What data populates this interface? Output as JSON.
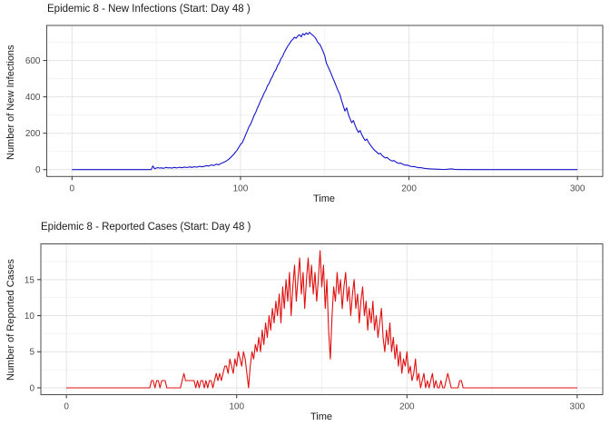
{
  "figure": {
    "background": "#ffffff"
  },
  "chart_data": [
    {
      "type": "line",
      "title": "Epidemic 8 - New Infections (Start: Day 48 )",
      "xlabel": "Time",
      "ylabel": "Number of New Infections",
      "line_color": "#1414cc",
      "grid": true,
      "legend": "none",
      "x_start": 0,
      "x_step": 1,
      "x_ticks": [
        0,
        100,
        200,
        300
      ],
      "x_minor_ticks": [
        50,
        150,
        250
      ],
      "y_ticks": [
        0,
        200,
        400,
        600
      ],
      "y_minor_ticks": [
        100,
        300,
        500,
        700
      ],
      "xlim": [
        -15,
        315
      ],
      "ylim": [
        -37.75,
        792.75
      ],
      "values": [
        0,
        0,
        0,
        0,
        0,
        0,
        0,
        0,
        0,
        0,
        0,
        0,
        0,
        0,
        0,
        0,
        0,
        0,
        0,
        0,
        0,
        0,
        0,
        0,
        0,
        0,
        0,
        0,
        0,
        0,
        0,
        0,
        0,
        0,
        0,
        0,
        0,
        0,
        0,
        0,
        0,
        0,
        0,
        0,
        0,
        0,
        0,
        0,
        20,
        5,
        8,
        11,
        8,
        10,
        7,
        9,
        12,
        9,
        11,
        8,
        10,
        12,
        9,
        11,
        13,
        10,
        12,
        14,
        11,
        13,
        15,
        12,
        14,
        16,
        13,
        16,
        18,
        15,
        17,
        19,
        22,
        19,
        23,
        26,
        22,
        27,
        30,
        26,
        32,
        36,
        40,
        44,
        50,
        57,
        65,
        75,
        84,
        96,
        107,
        123,
        138,
        148,
        168,
        190,
        212,
        235,
        250,
        272,
        296,
        315,
        338,
        358,
        380,
        398,
        420,
        436,
        460,
        474,
        498,
        512,
        536,
        548,
        572,
        586,
        610,
        622,
        645,
        662,
        678,
        692,
        706,
        716,
        728,
        722,
        735,
        742,
        730,
        748,
        740,
        752,
        744,
        755,
        746,
        738,
        730,
        715,
        698,
        690,
        672,
        650,
        625,
        585,
        565,
        545,
        522,
        500,
        478,
        455,
        432,
        412,
        380,
        350,
        322,
        340,
        305,
        280,
        258,
        270,
        244,
        222,
        205,
        215,
        192,
        175,
        160,
        168,
        150,
        136,
        124,
        112,
        103,
        95,
        86,
        90,
        78,
        70,
        64,
        67,
        58,
        52,
        47,
        50,
        43,
        38,
        34,
        36,
        31,
        27,
        24,
        25,
        21,
        18,
        16,
        17,
        14,
        12,
        10,
        11,
        9,
        7,
        6,
        5,
        4,
        4,
        3,
        3,
        2,
        2,
        2,
        1,
        1,
        1,
        1,
        2,
        3,
        4,
        3,
        1,
        1,
        0,
        1,
        0,
        0,
        1,
        0,
        0,
        0,
        0,
        0,
        0,
        0,
        0,
        0,
        0,
        0,
        0,
        0,
        0,
        0,
        0,
        0,
        0,
        0,
        0,
        0,
        0,
        0,
        0,
        0,
        0,
        0,
        0,
        0,
        0,
        0,
        0,
        0,
        0,
        0,
        0,
        0,
        0,
        0,
        0,
        0,
        0,
        0,
        0,
        0,
        0,
        0,
        0,
        0,
        0,
        0,
        0,
        0,
        0,
        0,
        0,
        0,
        0,
        0,
        0,
        0,
        0,
        0,
        0,
        0,
        0,
        0
      ]
    },
    {
      "type": "line",
      "title": "Epidemic 8 - Reported Cases (Start: Day 48 )",
      "xlabel": "Time",
      "ylabel": "Number of Reported Cases",
      "line_color": "#e01010",
      "grid": true,
      "legend": "none",
      "x_start": 0,
      "x_step": 1,
      "x_ticks": [
        0,
        100,
        200,
        300
      ],
      "x_minor_ticks": [
        50,
        150,
        250
      ],
      "y_ticks": [
        0,
        5,
        10,
        15
      ],
      "y_minor_ticks": [
        2.5,
        7.5,
        12.5,
        17.5
      ],
      "xlim": [
        -15,
        315
      ],
      "ylim": [
        -0.95,
        19.95
      ],
      "values": [
        0,
        0,
        0,
        0,
        0,
        0,
        0,
        0,
        0,
        0,
        0,
        0,
        0,
        0,
        0,
        0,
        0,
        0,
        0,
        0,
        0,
        0,
        0,
        0,
        0,
        0,
        0,
        0,
        0,
        0,
        0,
        0,
        0,
        0,
        0,
        0,
        0,
        0,
        0,
        0,
        0,
        0,
        0,
        0,
        0,
        0,
        0,
        0,
        0,
        0,
        1,
        1,
        0,
        1,
        1,
        0,
        1,
        1,
        1,
        0,
        0,
        0,
        0,
        0,
        0,
        0,
        0,
        0,
        1,
        2,
        1,
        1,
        1,
        1,
        1,
        1,
        0,
        1,
        0,
        1,
        1,
        0,
        1,
        0,
        1,
        1,
        0,
        1,
        2,
        1,
        2,
        1,
        2,
        3,
        3,
        2,
        4,
        3,
        2,
        4,
        3,
        5,
        4,
        3,
        5,
        4,
        2,
        0,
        3,
        5,
        4,
        6,
        5,
        7,
        5,
        8,
        6,
        9,
        7,
        10,
        8,
        11,
        9,
        12,
        10,
        13,
        9,
        14,
        11,
        15,
        12,
        16,
        10,
        14,
        17,
        12,
        15,
        18,
        13,
        16,
        11,
        15,
        18,
        14,
        17,
        13,
        16,
        12,
        15,
        19,
        14,
        17,
        11,
        15,
        8,
        4,
        10,
        14,
        12,
        16,
        13,
        15,
        11,
        14,
        16,
        12,
        14,
        10,
        13,
        15,
        11,
        13,
        9,
        12,
        14,
        10,
        12,
        8,
        11,
        9,
        12,
        8,
        10,
        7,
        9,
        11,
        7,
        5,
        8,
        6,
        9,
        5,
        7,
        4,
        6,
        3,
        5,
        2,
        4,
        3,
        5,
        2,
        3,
        1,
        2,
        4,
        1,
        2,
        0,
        1,
        2,
        0,
        1,
        0,
        1,
        2,
        0,
        1,
        0,
        0,
        1,
        0,
        0,
        1,
        2,
        1,
        0,
        0,
        0,
        0,
        0,
        1,
        1,
        0,
        0,
        0,
        0,
        0,
        0,
        0,
        0,
        0,
        0,
        0,
        0,
        0,
        0,
        0,
        0,
        0,
        0,
        0,
        0,
        0,
        0,
        0,
        0,
        0,
        0,
        0,
        0,
        0,
        0,
        0,
        0,
        0,
        0,
        0,
        0,
        0,
        0,
        0,
        0,
        0,
        0,
        0,
        0,
        0,
        0,
        0,
        0,
        0,
        0,
        0,
        0,
        0,
        0,
        0,
        0,
        0,
        0,
        0,
        0,
        0,
        0,
        0,
        0,
        0,
        0,
        0,
        0
      ]
    }
  ]
}
